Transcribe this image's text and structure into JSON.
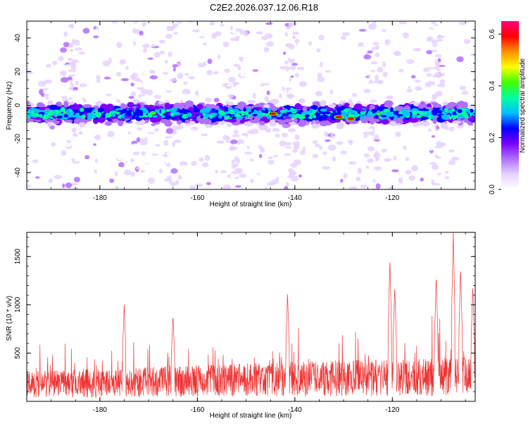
{
  "title": "C2E2.2026.037.12.06.R18",
  "colors": {
    "snr_line": "#ee3333",
    "axis": "#000000",
    "colormap": [
      "#ffffff",
      "#e6d2ff",
      "#b070ff",
      "#7a00ff",
      "#0000ff",
      "#00c0ff",
      "#00ffa0",
      "#40ff00",
      "#ffff00",
      "#ff9000",
      "#ff0000",
      "#ff0080"
    ]
  },
  "chart_data": [
    {
      "type": "heatmap",
      "title": "C2E2.2026.037.12.06.R18",
      "xlabel": "Height of straight line (km)",
      "ylabel": "Frequency (Hz)",
      "xlim": [
        -195,
        -103
      ],
      "ylim": [
        -50,
        50
      ],
      "xticks": [
        -180,
        -160,
        -140,
        -120
      ],
      "yticks": [
        -40,
        -20,
        0,
        20,
        40
      ],
      "band_center_hz": -5,
      "band_half_width_hz": 6,
      "colorbar": {
        "label": "Normalized spectral amplitude",
        "range": [
          0.0,
          0.65
        ],
        "ticks": [
          "0.0",
          "0.2",
          "0.4",
          "0.6"
        ]
      },
      "hotspots": [
        {
          "x": -144.5,
          "y": -5,
          "value": 0.62
        },
        {
          "x": -131,
          "y": -7,
          "value": 0.6
        },
        {
          "x": -128.5,
          "y": -8,
          "value": 0.58
        }
      ]
    },
    {
      "type": "line",
      "xlabel": "Height of straight line (km)",
      "ylabel": "SNR (10 * v/v)",
      "xlim": [
        -195,
        -103
      ],
      "ylim": [
        0,
        1750
      ],
      "xticks": [
        -180,
        -160,
        -140,
        -120
      ],
      "yticks": [
        500,
        1000,
        1500
      ],
      "series": [
        {
          "name": "SNR",
          "baseline_start": 250,
          "baseline_end": 380,
          "peaks": [
            {
              "x": -175,
              "y": 1010
            },
            {
              "x": -165,
              "y": 890
            },
            {
              "x": -141.5,
              "y": 1120
            },
            {
              "x": -120.5,
              "y": 1460
            },
            {
              "x": -119.5,
              "y": 1190
            },
            {
              "x": -111,
              "y": 1300
            },
            {
              "x": -107.5,
              "y": 1750
            },
            {
              "x": -106,
              "y": 1380
            },
            {
              "x": -103.5,
              "y": 1190
            }
          ]
        }
      ]
    }
  ]
}
